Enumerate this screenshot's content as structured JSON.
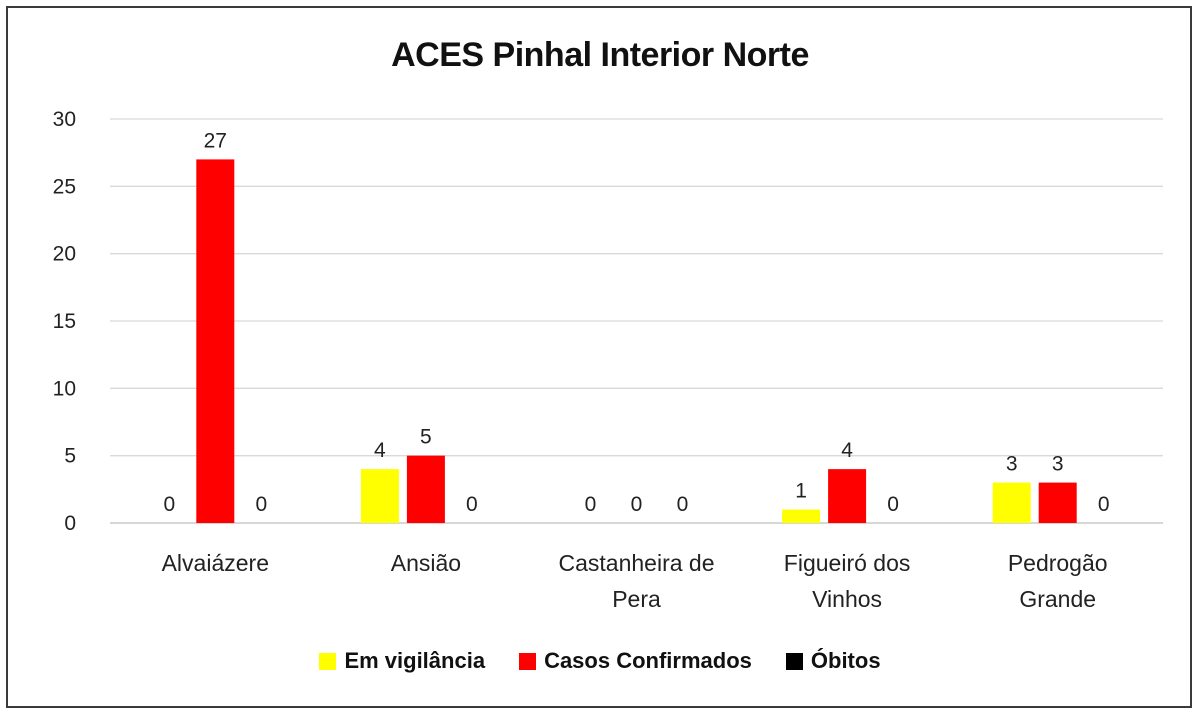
{
  "chart_data": {
    "type": "bar",
    "title": "ACES Pinhal Interior Norte",
    "xlabel": "",
    "ylabel": "",
    "ylim": [
      0,
      30
    ],
    "yticks": [
      0,
      5,
      10,
      15,
      20,
      25,
      30
    ],
    "grid": true,
    "legend_position": "bottom",
    "categories": [
      [
        "Alvaiázere"
      ],
      [
        "Ansião"
      ],
      [
        "Castanheira de",
        "Pera"
      ],
      [
        "Figueiró dos",
        "Vinhos"
      ],
      [
        "Pedrogão",
        "Grande"
      ]
    ],
    "series": [
      {
        "name": "Em vigilância",
        "color": "#ffff00",
        "values": [
          0,
          4,
          0,
          1,
          3
        ]
      },
      {
        "name": "Casos Confirmados",
        "color": "#ff0000",
        "values": [
          27,
          5,
          0,
          4,
          3
        ]
      },
      {
        "name": "Óbitos",
        "color": "#000000",
        "values": [
          0,
          0,
          0,
          0,
          0
        ]
      }
    ]
  }
}
